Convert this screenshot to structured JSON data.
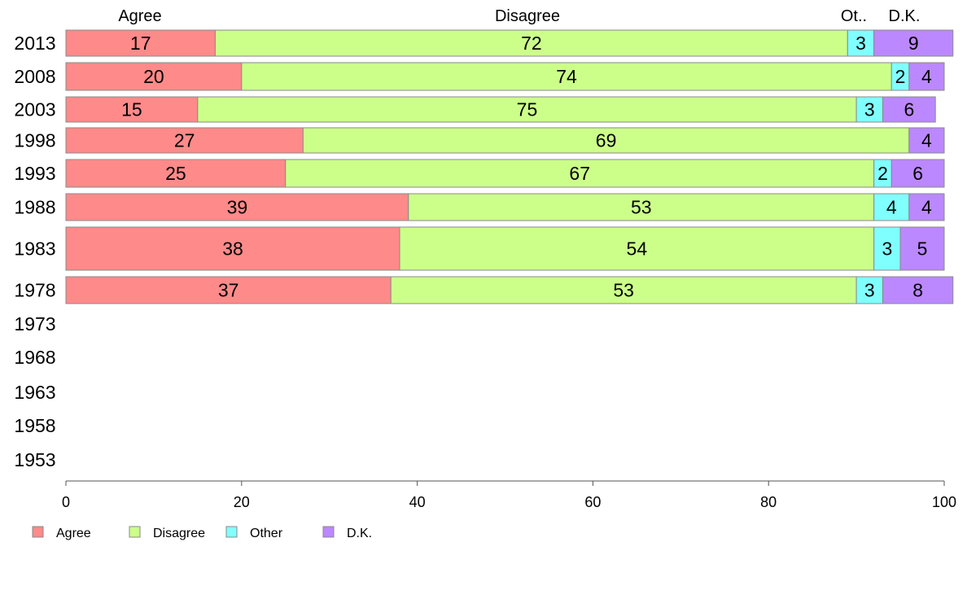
{
  "chart_data": {
    "type": "bar",
    "orientation": "horizontal",
    "stacked": true,
    "categories": [
      "2013",
      "2008",
      "2003",
      "1998",
      "1993",
      "1988",
      "1983",
      "1978",
      "1973",
      "1968",
      "1963",
      "1958",
      "1953"
    ],
    "series": [
      {
        "name": "Agree",
        "color": "#ff8a8a",
        "values": [
          17,
          20,
          15,
          27,
          25,
          39,
          38,
          37,
          null,
          null,
          null,
          null,
          null
        ]
      },
      {
        "name": "Disagree",
        "color": "#ccff8a",
        "values": [
          72,
          74,
          75,
          69,
          67,
          53,
          54,
          53,
          null,
          null,
          null,
          null,
          null
        ]
      },
      {
        "name": "Other",
        "color": "#80ffff",
        "values": [
          3,
          2,
          3,
          0,
          2,
          4,
          3,
          3,
          null,
          null,
          null,
          null,
          null
        ]
      },
      {
        "name": "D.K.",
        "color": "#bb88ff",
        "values": [
          9,
          4,
          6,
          4,
          6,
          4,
          5,
          8,
          null,
          null,
          null,
          null,
          null
        ]
      }
    ],
    "column_headers": [
      "Agree",
      "Disagree",
      "Ot..",
      "D.K."
    ],
    "legend_labels": [
      "Agree",
      "Disagree",
      "Other",
      "D.K."
    ],
    "xlim": [
      0,
      100
    ],
    "xticks": [
      0,
      20,
      40,
      60,
      80,
      100
    ],
    "grid": false,
    "legend_position": "bottom-left"
  }
}
